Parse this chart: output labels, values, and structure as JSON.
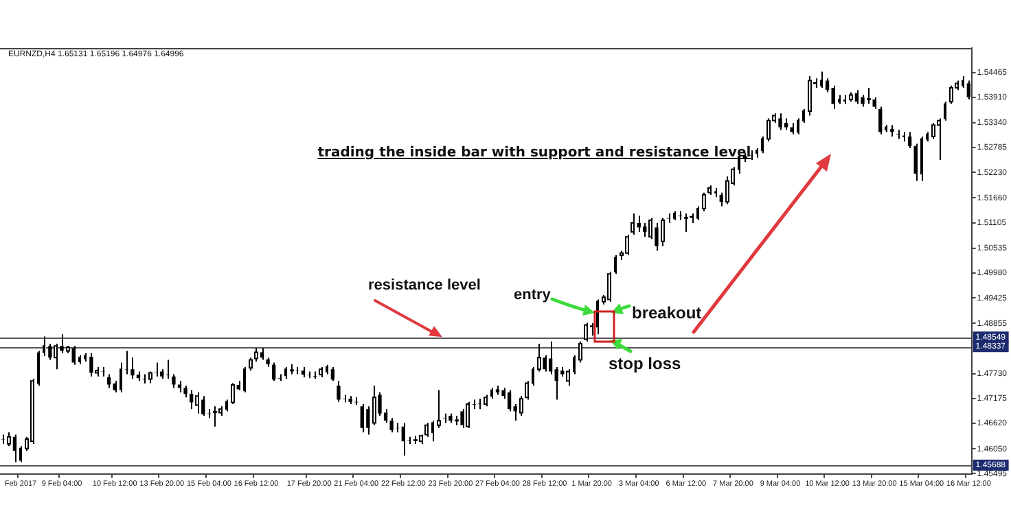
{
  "chart_data": {
    "type": "candlestick",
    "title": "trading the inside bar with support and resistance level",
    "annotations": [
      "EURNZD,H4  1.65131 1.65196 1.64976 1.64996",
      {
        "text": "resistance level",
        "y": 1.48549
      },
      "entry",
      "breakout",
      "stop loss"
    ],
    "categories": [
      null,
      null,
      null,
      "Feb 2017",
      null,
      null,
      null,
      null,
      null,
      null,
      "9 Feb 04:00",
      null,
      null,
      null,
      null,
      null,
      null,
      null,
      null,
      "10 Feb 12:00",
      null,
      null,
      null,
      null,
      null,
      null,
      null,
      "13 Feb 20:00",
      null,
      null,
      null,
      null,
      null,
      null,
      null,
      "15 Feb 04:00",
      null,
      null,
      null,
      null,
      null,
      null,
      null,
      "16 Feb 12:00",
      null,
      null,
      null,
      null,
      null,
      null,
      null,
      null,
      "17 Feb 20:00",
      null,
      null,
      null,
      null,
      null,
      null,
      null,
      "21 Feb 04:00",
      null,
      null,
      null,
      null,
      null,
      null,
      null,
      "22 Feb 12:00",
      null,
      null,
      null,
      null,
      null,
      null,
      null,
      "23 Feb 20:00",
      null,
      null,
      null,
      null,
      null,
      null,
      null,
      "27 Feb 04:00",
      null,
      null,
      null,
      null,
      null,
      null,
      null,
      "28 Feb 12:00",
      null,
      null,
      null,
      null,
      null,
      null,
      null,
      "1 Mar 20:00",
      null,
      null,
      null,
      null,
      null,
      null,
      null,
      "3 Mar 04:00",
      null,
      null,
      null,
      null,
      null,
      null,
      null,
      "6 Mar 12:00",
      null,
      null,
      null,
      null,
      null,
      null,
      null,
      "7 Mar 20:00",
      null,
      null,
      null,
      null,
      null,
      null,
      null,
      "9 Mar 04:00",
      null,
      null,
      null,
      null,
      null,
      null,
      null,
      "10 Mar 12:00",
      null,
      null,
      null,
      null,
      null,
      null,
      null,
      "13 Mar 20:00",
      null,
      null,
      null,
      null,
      null,
      null,
      null,
      "15 Mar 04:00",
      null,
      null,
      null,
      null,
      null,
      null,
      null,
      "16 Mar 12:00"
    ],
    "ohlc": [
      [
        1.4627,
        1.4637,
        1.4616,
        1.4626
      ],
      [
        1.4616,
        1.4642,
        1.4611,
        1.4632
      ],
      [
        1.4632,
        1.4637,
        1.4575,
        1.4601
      ],
      [
        1.458,
        1.4611,
        1.4575,
        1.4606
      ],
      [
        1.4606,
        1.4632,
        1.4601,
        1.4627
      ],
      [
        1.4622,
        1.4762,
        1.4616,
        1.4757
      ],
      [
        1.4752,
        1.4824,
        1.4746,
        1.4819
      ],
      [
        1.4821,
        1.4856,
        1.4813,
        1.4835
      ],
      [
        1.4835,
        1.484,
        1.4804,
        1.4809
      ],
      [
        1.4809,
        1.484,
        1.4783,
        1.4835
      ],
      [
        1.4835,
        1.4861,
        1.4819,
        1.4824
      ],
      [
        1.4824,
        1.4835,
        1.4819,
        1.4832
      ],
      [
        1.483,
        1.4835,
        1.4793,
        1.4798
      ],
      [
        1.48,
        1.4814,
        1.4794,
        1.4809
      ],
      [
        1.4807,
        1.4819,
        1.48,
        1.4813
      ],
      [
        1.4811,
        1.4819,
        1.4767,
        1.4775
      ],
      [
        1.4775,
        1.4788,
        1.4767,
        1.478
      ],
      [
        1.4778,
        1.4788,
        1.4767,
        1.4777
      ],
      [
        1.4765,
        1.4772,
        1.4741,
        1.4749
      ],
      [
        1.4751,
        1.4757,
        1.4731,
        1.4736
      ],
      [
        1.4738,
        1.4798,
        1.4731,
        1.4783
      ],
      [
        1.4783,
        1.4824,
        1.4772,
        1.4782
      ],
      [
        1.4783,
        1.4809,
        1.4762,
        1.4769
      ],
      [
        1.4771,
        1.4778,
        1.4757,
        1.4763
      ],
      [
        1.4761,
        1.4772,
        1.4751,
        1.476
      ],
      [
        1.4761,
        1.4778,
        1.4752,
        1.4775
      ],
      [
        1.4775,
        1.4798,
        1.4767,
        1.4774
      ],
      [
        1.4778,
        1.4783,
        1.4762,
        1.4767
      ],
      [
        1.4771,
        1.4804,
        1.4762,
        1.477
      ],
      [
        1.4767,
        1.4772,
        1.4741,
        1.4749
      ],
      [
        1.4749,
        1.4757,
        1.4731,
        1.4741
      ],
      [
        1.4741,
        1.4746,
        1.472,
        1.4728
      ],
      [
        1.4728,
        1.4736,
        1.4694,
        1.4709
      ],
      [
        1.4703,
        1.4731,
        1.4684,
        1.4723
      ],
      [
        1.4715,
        1.4723,
        1.4679,
        1.4682
      ],
      [
        1.4684,
        1.4694,
        1.4674,
        1.4683
      ],
      [
        1.4687,
        1.47,
        1.4655,
        1.4688
      ],
      [
        1.4686,
        1.47,
        1.4679,
        1.4694
      ],
      [
        1.4694,
        1.4715,
        1.4689,
        1.471
      ],
      [
        1.4709,
        1.4752,
        1.4705,
        1.4748
      ],
      [
        1.4748,
        1.4757,
        1.4736,
        1.4738
      ],
      [
        1.4736,
        1.4788,
        1.4731,
        1.4783
      ],
      [
        1.4786,
        1.4809,
        1.478,
        1.4804
      ],
      [
        1.4807,
        1.483,
        1.48,
        1.4821
      ],
      [
        1.4821,
        1.483,
        1.4804,
        1.4809
      ],
      [
        1.4805,
        1.4809,
        1.4788,
        1.4794
      ],
      [
        1.4793,
        1.4798,
        1.4757,
        1.476
      ],
      [
        1.4763,
        1.4772,
        1.4757,
        1.4762
      ],
      [
        1.4769,
        1.4788,
        1.4762,
        1.4783
      ],
      [
        1.478,
        1.4794,
        1.4772,
        1.4781
      ],
      [
        1.478,
        1.4788,
        1.4772,
        1.4779
      ],
      [
        1.478,
        1.4788,
        1.4765,
        1.4771
      ],
      [
        1.4771,
        1.4778,
        1.4763,
        1.477
      ],
      [
        1.4768,
        1.4778,
        1.4762,
        1.4767
      ],
      [
        1.4771,
        1.4788,
        1.4765,
        1.4783
      ],
      [
        1.4778,
        1.4793,
        1.4772,
        1.4788
      ],
      [
        1.4783,
        1.4788,
        1.4757,
        1.476
      ],
      [
        1.4746,
        1.4757,
        1.471,
        1.4715
      ],
      [
        1.4717,
        1.4726,
        1.4709,
        1.4716
      ],
      [
        1.4717,
        1.4723,
        1.4705,
        1.471
      ],
      [
        1.471,
        1.472,
        1.4703,
        1.4709
      ],
      [
        1.47,
        1.4705,
        1.4642,
        1.4652
      ],
      [
        1.4694,
        1.47,
        1.4637,
        1.4652
      ],
      [
        1.4663,
        1.4746,
        1.4658,
        1.472
      ],
      [
        1.4726,
        1.4731,
        1.4679,
        1.4684
      ],
      [
        1.4686,
        1.4694,
        1.4663,
        1.4668
      ],
      [
        1.4668,
        1.4674,
        1.4642,
        1.4647
      ],
      [
        1.4652,
        1.4663,
        1.4642,
        1.4651
      ],
      [
        1.4655,
        1.4663,
        1.459,
        1.4622
      ],
      [
        1.4624,
        1.4632,
        1.4616,
        1.4623
      ],
      [
        1.4624,
        1.4634,
        1.4616,
        1.4625
      ],
      [
        1.4622,
        1.4637,
        1.4616,
        1.4634
      ],
      [
        1.4637,
        1.4663,
        1.4632,
        1.4658
      ],
      [
        1.4642,
        1.4668,
        1.4622,
        1.4663
      ],
      [
        1.4658,
        1.4736,
        1.4652,
        1.4668
      ],
      [
        1.4674,
        1.4684,
        1.4663,
        1.4673
      ],
      [
        1.4679,
        1.4684,
        1.4663,
        1.4668
      ],
      [
        1.4668,
        1.4679,
        1.4658,
        1.4669
      ],
      [
        1.4689,
        1.4694,
        1.4652,
        1.4658
      ],
      [
        1.4655,
        1.471,
        1.4652,
        1.4705
      ],
      [
        1.4705,
        1.4715,
        1.4694,
        1.4704
      ],
      [
        1.4707,
        1.4717,
        1.4694,
        1.4706
      ],
      [
        1.4705,
        1.4726,
        1.47,
        1.472
      ],
      [
        1.4723,
        1.4741,
        1.4717,
        1.4736
      ],
      [
        1.4738,
        1.4746,
        1.4726,
        1.4731
      ],
      [
        1.4736,
        1.4741,
        1.4717,
        1.4723
      ],
      [
        1.4731,
        1.4736,
        1.4689,
        1.4694
      ],
      [
        1.47,
        1.4705,
        1.4668,
        1.4689
      ],
      [
        1.4686,
        1.4723,
        1.4679,
        1.4717
      ],
      [
        1.472,
        1.4757,
        1.4715,
        1.4752
      ],
      [
        1.4752,
        1.4788,
        1.4746,
        1.4783
      ],
      [
        1.4783,
        1.484,
        1.4778,
        1.4809
      ],
      [
        1.4809,
        1.4814,
        1.4778,
        1.4783
      ],
      [
        1.4807,
        1.4845,
        1.4772,
        1.4778
      ],
      [
        1.4783,
        1.4788,
        1.4715,
        1.4757
      ],
      [
        1.478,
        1.4788,
        1.4767,
        1.4772
      ],
      [
        1.4757,
        1.4783,
        1.4746,
        1.4778
      ],
      [
        1.4778,
        1.4814,
        1.4772,
        1.4809
      ],
      [
        1.4804,
        1.4845,
        1.4798,
        1.484
      ],
      [
        1.485,
        1.4887,
        1.4845,
        1.4882
      ],
      [
        1.4881,
        1.4886,
        1.4858,
        1.4877
      ],
      [
        1.4878,
        1.4939,
        1.4861,
        1.4934
      ],
      [
        1.4934,
        1.4949,
        1.4928,
        1.4944
      ],
      [
        1.4939,
        1.5001,
        1.4934,
        1.4996
      ],
      [
        1.5001,
        1.5038,
        1.4996,
        1.5032
      ],
      [
        1.5038,
        1.5048,
        1.5027,
        1.5043
      ],
      [
        1.5043,
        1.5084,
        1.5038,
        1.5079
      ],
      [
        1.509,
        1.5131,
        1.5084,
        1.511
      ],
      [
        1.511,
        1.5126,
        1.509,
        1.51
      ],
      [
        1.5102,
        1.511,
        1.5079,
        1.509
      ],
      [
        1.5079,
        1.5121,
        1.5074,
        1.5116
      ],
      [
        1.51,
        1.511,
        1.5048,
        1.5058
      ],
      [
        1.5069,
        1.5121,
        1.5058,
        1.5116
      ],
      [
        1.5121,
        1.5131,
        1.511,
        1.512
      ],
      [
        1.5121,
        1.5136,
        1.5116,
        1.5131
      ],
      [
        1.5126,
        1.5136,
        1.5116,
        1.5125
      ],
      [
        1.5121,
        1.5131,
        1.509,
        1.5122
      ],
      [
        1.5123,
        1.5131,
        1.511,
        1.5124
      ],
      [
        1.5121,
        1.5147,
        1.5116,
        1.5142
      ],
      [
        1.5142,
        1.5178,
        1.5136,
        1.5173
      ],
      [
        1.5178,
        1.5194,
        1.5173,
        1.5188
      ],
      [
        1.5178,
        1.5188,
        1.5168,
        1.5179
      ],
      [
        1.5173,
        1.5178,
        1.5147,
        1.5157
      ],
      [
        1.5157,
        1.5214,
        1.5152,
        1.5204
      ],
      [
        1.5199,
        1.5235,
        1.5194,
        1.523
      ],
      [
        1.523,
        1.5261,
        1.522,
        1.5258
      ],
      [
        1.5256,
        1.5266,
        1.5246,
        1.5257
      ],
      [
        1.5261,
        1.5272,
        1.5251,
        1.526
      ],
      [
        1.5266,
        1.5277,
        1.5256,
        1.5272
      ],
      [
        1.5272,
        1.5303,
        1.5266,
        1.5298
      ],
      [
        1.5298,
        1.5344,
        1.5292,
        1.5339
      ],
      [
        1.5339,
        1.5355,
        1.5334,
        1.535
      ],
      [
        1.5344,
        1.5355,
        1.5318,
        1.5324
      ],
      [
        1.5334,
        1.5344,
        1.5318,
        1.5324
      ],
      [
        1.5324,
        1.5334,
        1.5308,
        1.5313
      ],
      [
        1.5313,
        1.5344,
        1.5308,
        1.5339
      ],
      [
        1.5339,
        1.5365,
        1.5334,
        1.536
      ],
      [
        1.536,
        1.5438,
        1.535,
        1.5428
      ],
      [
        1.5422,
        1.5433,
        1.5412,
        1.5423
      ],
      [
        1.5417,
        1.5448,
        1.5412,
        1.5428
      ],
      [
        1.5428,
        1.5433,
        1.5402,
        1.5407
      ],
      [
        1.5412,
        1.5417,
        1.5365,
        1.5376
      ],
      [
        1.5381,
        1.5396,
        1.5376,
        1.5386
      ],
      [
        1.5383,
        1.5396,
        1.5376,
        1.5384
      ],
      [
        1.5386,
        1.5402,
        1.5381,
        1.5396
      ],
      [
        1.54,
        1.5407,
        1.5376,
        1.5381
      ],
      [
        1.5391,
        1.5396,
        1.537,
        1.5376
      ],
      [
        1.5386,
        1.5412,
        1.5376,
        1.5387
      ],
      [
        1.5386,
        1.5391,
        1.5365,
        1.537
      ],
      [
        1.5365,
        1.537,
        1.5308,
        1.5313
      ],
      [
        1.5318,
        1.5329,
        1.5313,
        1.5324
      ],
      [
        1.532,
        1.5329,
        1.5303,
        1.5313
      ],
      [
        1.5308,
        1.5318,
        1.5298,
        1.5307
      ],
      [
        1.5303,
        1.5313,
        1.5292,
        1.5304
      ],
      [
        1.5303,
        1.5313,
        1.5277,
        1.5282
      ],
      [
        1.5282,
        1.5287,
        1.5204,
        1.522
      ],
      [
        1.522,
        1.5303,
        1.5204,
        1.5298
      ],
      [
        1.5298,
        1.5313,
        1.5292,
        1.5308
      ],
      [
        1.5303,
        1.5334,
        1.5298,
        1.5329
      ],
      [
        1.5329,
        1.5344,
        1.5251,
        1.5339
      ],
      [
        1.5344,
        1.5381,
        1.5339,
        1.5376
      ],
      [
        1.5381,
        1.5417,
        1.5376,
        1.5412
      ],
      [
        1.5412,
        1.5428,
        1.5407,
        1.5422
      ],
      [
        1.5417,
        1.5438,
        1.5412,
        1.5428
      ],
      [
        1.5422,
        1.5428,
        1.5386,
        1.5391
      ]
    ],
    "ylim": [
      1.4549,
      1.5501
    ],
    "yticks": [
      {
        "value": 1.54465,
        "label": "1.54465"
      },
      {
        "value": 1.5391,
        "label": "1.53910"
      },
      {
        "value": 1.5334,
        "label": "1.53340"
      },
      {
        "value": 1.52785,
        "label": "1.52785"
      },
      {
        "value": 1.5223,
        "label": "1.52230"
      },
      {
        "value": 1.5166,
        "label": "1.51660"
      },
      {
        "value": 1.51105,
        "label": "1.51105"
      },
      {
        "value": 1.50535,
        "label": "1.50535"
      },
      {
        "value": 1.4998,
        "label": "1.49980"
      },
      {
        "value": 1.49425,
        "label": "1.49425"
      },
      {
        "value": 1.48855,
        "label": "1.48855"
      },
      {
        "value": 1.4773,
        "label": "1.47730"
      },
      {
        "value": 1.47175,
        "label": "1.47175"
      },
      {
        "value": 1.4662,
        "label": "1.46620"
      },
      {
        "value": 1.4605,
        "label": "1.46050"
      },
      {
        "value": 1.45495,
        "label": "1.45495"
      }
    ],
    "ref_lines": [
      {
        "axis": "y",
        "value": 1.48549,
        "label": "1.48549",
        "color": "#555555"
      },
      {
        "axis": "y",
        "value": 1.48337,
        "label": "1.48337",
        "color": "#555555"
      },
      {
        "axis": "y",
        "value": 1.45688,
        "label": "1.45688",
        "color": "#555555"
      }
    ]
  }
}
